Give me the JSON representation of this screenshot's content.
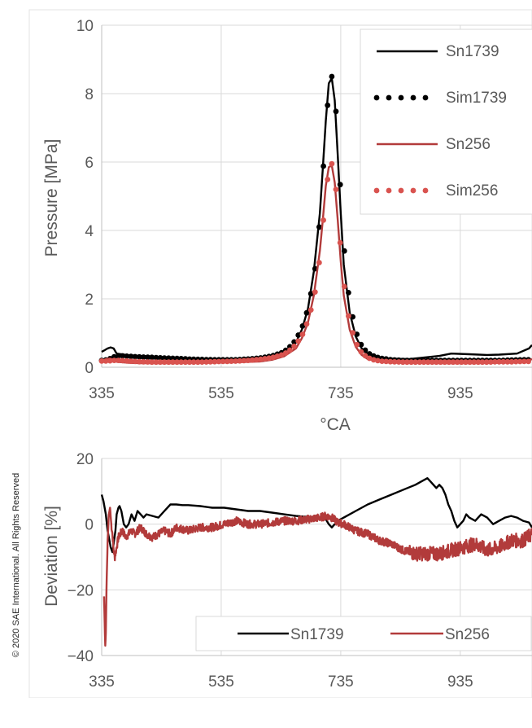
{
  "copyright": "© 2020 SAE International. All Rights Reserved",
  "colors": {
    "black": "#000000",
    "red": "#b23b3b",
    "sim_red": "#d9534f",
    "grid": "#d9d9d9",
    "text": "#595959"
  },
  "chart_data": [
    {
      "type": "line",
      "title": "",
      "xlabel": "°CA",
      "ylabel": "Pressure [MPa]",
      "xlim": [
        335,
        1055
      ],
      "ylim": [
        0,
        10
      ],
      "xticks": [
        335,
        535,
        735,
        935
      ],
      "yticks": [
        0,
        2,
        4,
        6,
        8,
        10
      ],
      "grid": true,
      "legend": "top-right",
      "series": [
        {
          "name": "Sn1739",
          "style": "solid",
          "color": "#000000",
          "x": [
            335,
            340,
            345,
            350,
            355,
            360,
            380,
            400,
            450,
            500,
            550,
            600,
            620,
            640,
            660,
            670,
            680,
            690,
            700,
            705,
            710,
            715,
            720,
            725,
            730,
            735,
            740,
            750,
            760,
            770,
            780,
            800,
            850,
            900,
            920,
            950,
            980,
            1000,
            1030,
            1050,
            1055
          ],
          "y": [
            0.45,
            0.5,
            0.55,
            0.58,
            0.55,
            0.4,
            0.35,
            0.33,
            0.28,
            0.24,
            0.22,
            0.24,
            0.3,
            0.42,
            0.72,
            1.1,
            1.7,
            2.8,
            4.5,
            5.8,
            7.2,
            8.3,
            8.45,
            7.8,
            6.2,
            4.5,
            3.0,
            1.6,
            0.9,
            0.55,
            0.38,
            0.26,
            0.24,
            0.33,
            0.4,
            0.38,
            0.36,
            0.37,
            0.4,
            0.55,
            0.65
          ]
        },
        {
          "name": "Sim1739",
          "style": "dotted",
          "color": "#000000",
          "x": [
            335,
            345,
            355,
            365,
            380,
            400,
            420,
            440,
            460,
            480,
            500,
            520,
            540,
            560,
            580,
            600,
            620,
            640,
            650,
            660,
            670,
            680,
            690,
            695,
            700,
            705,
            710,
            715,
            720,
            725,
            730,
            735,
            740,
            745,
            750,
            760,
            770,
            780,
            790,
            800,
            820,
            840,
            860,
            880,
            900,
            920,
            940,
            960,
            980,
            1000,
            1020,
            1040,
            1055
          ],
          "y": [
            0.2,
            0.22,
            0.3,
            0.34,
            0.32,
            0.3,
            0.29,
            0.27,
            0.26,
            0.24,
            0.23,
            0.22,
            0.22,
            0.22,
            0.24,
            0.27,
            0.33,
            0.45,
            0.6,
            0.8,
            1.15,
            1.7,
            2.6,
            3.3,
            4.3,
            5.6,
            7.0,
            8.1,
            8.5,
            8.0,
            6.7,
            5.0,
            3.6,
            2.6,
            1.9,
            1.05,
            0.62,
            0.42,
            0.33,
            0.27,
            0.22,
            0.2,
            0.2,
            0.2,
            0.2,
            0.2,
            0.2,
            0.2,
            0.2,
            0.2,
            0.21,
            0.22,
            0.22
          ]
        },
        {
          "name": "Sn256",
          "style": "solid",
          "color": "#b23b3b",
          "x": [
            335,
            340,
            345,
            350,
            355,
            360,
            380,
            400,
            450,
            500,
            550,
            600,
            620,
            640,
            660,
            670,
            680,
            690,
            700,
            705,
            710,
            715,
            720,
            725,
            730,
            735,
            740,
            750,
            760,
            770,
            780,
            800,
            850,
            900,
            950,
            1000,
            1030,
            1050,
            1055
          ],
          "y": [
            0.2,
            0.22,
            0.25,
            0.25,
            0.22,
            0.16,
            0.13,
            0.12,
            0.12,
            0.13,
            0.14,
            0.17,
            0.22,
            0.32,
            0.55,
            0.85,
            1.3,
            2.1,
            3.4,
            4.3,
            5.3,
            5.85,
            5.9,
            5.4,
            4.3,
            3.1,
            2.1,
            1.1,
            0.6,
            0.36,
            0.24,
            0.17,
            0.13,
            0.12,
            0.12,
            0.13,
            0.15,
            0.2,
            0.24
          ]
        },
        {
          "name": "Sim256",
          "style": "dotted",
          "color": "#d9534f",
          "x": [
            335,
            345,
            355,
            365,
            380,
            400,
            420,
            440,
            460,
            480,
            500,
            520,
            540,
            560,
            580,
            600,
            620,
            640,
            650,
            660,
            670,
            680,
            690,
            695,
            700,
            705,
            710,
            715,
            720,
            725,
            730,
            735,
            740,
            745,
            750,
            760,
            770,
            780,
            790,
            800,
            820,
            840,
            860,
            880,
            900,
            920,
            940,
            960,
            980,
            1000,
            1020,
            1040,
            1055
          ],
          "y": [
            0.18,
            0.18,
            0.2,
            0.2,
            0.18,
            0.16,
            0.15,
            0.15,
            0.15,
            0.15,
            0.15,
            0.16,
            0.17,
            0.18,
            0.2,
            0.23,
            0.28,
            0.38,
            0.5,
            0.66,
            0.92,
            1.35,
            2.0,
            2.5,
            3.2,
            4.1,
            5.1,
            5.75,
            5.95,
            5.6,
            4.6,
            3.4,
            2.5,
            1.8,
            1.3,
            0.72,
            0.42,
            0.28,
            0.22,
            0.18,
            0.16,
            0.15,
            0.15,
            0.15,
            0.15,
            0.15,
            0.15,
            0.15,
            0.15,
            0.16,
            0.16,
            0.17,
            0.17
          ]
        }
      ]
    },
    {
      "type": "line",
      "title": "",
      "xlabel": "",
      "ylabel": "Deviation [%]",
      "xlim": [
        335,
        1055
      ],
      "ylim": [
        -40,
        20
      ],
      "xticks": [
        335,
        535,
        735,
        935
      ],
      "yticks": [
        -40,
        -20,
        0,
        20
      ],
      "tick_label_minus": "−",
      "grid": true,
      "legend": "bottom-right",
      "series": [
        {
          "name": "Sn1739",
          "style": "solid",
          "color": "#000000",
          "x": [
            335,
            338,
            342,
            345,
            348,
            350,
            353,
            355,
            358,
            360,
            363,
            365,
            368,
            372,
            376,
            380,
            385,
            390,
            395,
            400,
            405,
            410,
            420,
            430,
            440,
            450,
            460,
            470,
            480,
            500,
            520,
            540,
            560,
            580,
            600,
            620,
            640,
            660,
            680,
            700,
            710,
            715,
            720,
            725,
            730,
            740,
            750,
            760,
            780,
            800,
            820,
            840,
            860,
            870,
            880,
            885,
            890,
            895,
            900,
            905,
            910,
            915,
            920,
            925,
            930,
            935,
            940,
            945,
            950,
            960,
            970,
            980,
            990,
            1000,
            1010,
            1020,
            1030,
            1040,
            1050,
            1055
          ],
          "y": [
            9,
            7,
            3,
            -2,
            -5,
            -7,
            -8.5,
            -6,
            -2,
            3,
            5,
            5.5,
            4,
            0,
            -1,
            0,
            3,
            1,
            4,
            3,
            2,
            3,
            2.5,
            2,
            4,
            6,
            6,
            5.8,
            5.8,
            5.5,
            5,
            5,
            4.5,
            4,
            4,
            3.5,
            3,
            2.5,
            2.2,
            2,
            1.5,
            0,
            -1,
            0,
            1,
            2,
            3,
            4,
            6,
            7.5,
            9,
            10.5,
            12,
            13,
            14,
            13,
            12,
            11,
            12,
            11,
            9,
            6,
            4,
            1,
            -1,
            0,
            1,
            3,
            2,
            1,
            3,
            2,
            0,
            1,
            2,
            2.5,
            2,
            1,
            0.5,
            -1
          ]
        },
        {
          "name": "Sn256",
          "style": "solid",
          "color": "#b23b3b",
          "noise": 1.2,
          "x": [
            339,
            340,
            341,
            342,
            343,
            345,
            347,
            349,
            351,
            353,
            355,
            357,
            360,
            363,
            366,
            370,
            375,
            380,
            385,
            390,
            395,
            400,
            410,
            420,
            430,
            440,
            450,
            460,
            480,
            500,
            520,
            540,
            560,
            580,
            600,
            620,
            640,
            660,
            680,
            700,
            710,
            720,
            730,
            740,
            750,
            760,
            780,
            800,
            820,
            840,
            860,
            880,
            900,
            920,
            940,
            960,
            980,
            1000,
            1020,
            1040,
            1055
          ],
          "y": [
            -22,
            -30,
            -37,
            -33,
            -20,
            -5,
            3,
            5,
            0,
            -3,
            -8,
            -10,
            -7,
            -4,
            -3,
            -2,
            -4,
            -3,
            -2,
            -3,
            -2,
            -1,
            -3,
            -4,
            -3,
            -2,
            -3,
            -1,
            -2,
            -1,
            -1,
            0,
            1,
            0,
            0,
            0.5,
            1,
            1,
            1.5,
            2,
            2.5,
            2,
            0.5,
            0,
            -1,
            -2,
            -3,
            -5,
            -6,
            -8,
            -9,
            -9,
            -9,
            -8,
            -7,
            -6,
            -8,
            -7,
            -5,
            -5,
            -3
          ]
        }
      ]
    }
  ]
}
